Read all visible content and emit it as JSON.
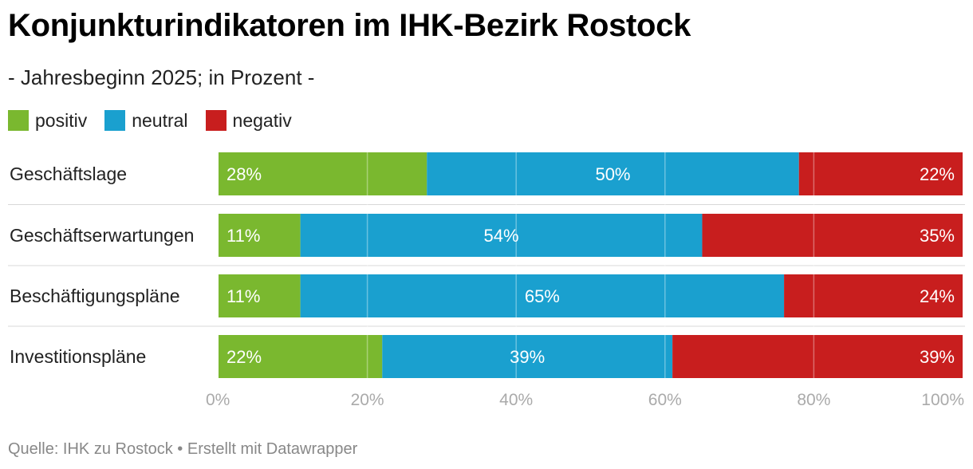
{
  "title": "Konjunkturindikatoren im IHK-Bezirk Rostock",
  "subtitle": "- Jahresbeginn 2025; in Prozent -",
  "legend": [
    {
      "label": "positiv",
      "color": "#7ab82f"
    },
    {
      "label": "neutral",
      "color": "#1aa0cf"
    },
    {
      "label": "negativ",
      "color": "#c81e1e"
    }
  ],
  "footer": "Quelle: IHK zu Rostock • Erstellt mit Datawrapper",
  "chart_data": {
    "type": "bar",
    "orientation": "horizontal",
    "stacked": true,
    "categories": [
      "Geschäftslage",
      "Geschäftserwartungen",
      "Beschäftigungspläne",
      "Investitionspläne"
    ],
    "series": [
      {
        "name": "positiv",
        "color": "#7ab82f",
        "values": [
          28,
          11,
          11,
          22
        ],
        "labels": [
          "28%",
          "11%",
          "11%",
          "22%"
        ]
      },
      {
        "name": "neutral",
        "color": "#1aa0cf",
        "values": [
          50,
          54,
          65,
          39
        ],
        "labels": [
          "50%",
          "54%",
          "65%",
          "39%"
        ]
      },
      {
        "name": "negativ",
        "color": "#c81e1e",
        "values": [
          22,
          35,
          24,
          39
        ],
        "labels": [
          "22%",
          "35%",
          "24%",
          "39%"
        ]
      }
    ],
    "xlim": [
      0,
      100
    ],
    "xticks": [
      0,
      20,
      40,
      60,
      80,
      100
    ],
    "xtick_labels": [
      "0%",
      "20%",
      "40%",
      "60%",
      "80%",
      "100%"
    ],
    "grid": true,
    "legend_position": "top-left"
  }
}
